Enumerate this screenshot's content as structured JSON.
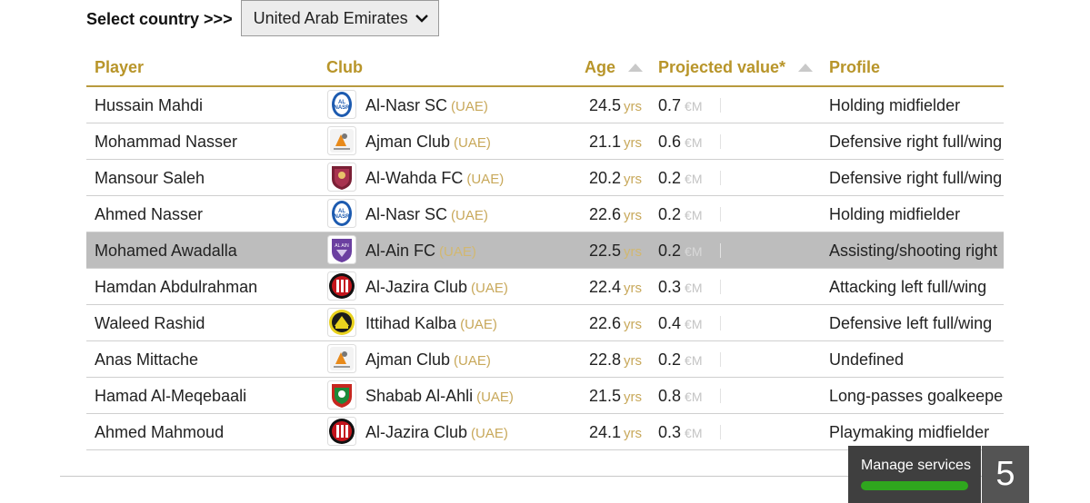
{
  "selector": {
    "label": "Select country >>>",
    "value": "United Arab Emirates"
  },
  "columns": {
    "player": "Player",
    "club": "Club",
    "age": "Age",
    "value": "Projected value*",
    "profile": "Profile"
  },
  "rows": [
    {
      "player": "Hussain Mahdi",
      "club": "Al-Nasr SC",
      "country": "(UAE)",
      "age": "24.5",
      "age_unit": "yrs",
      "value": "0.7",
      "currency": "€M",
      "profile": "Holding midfielder",
      "logo": "al-nasr-logo"
    },
    {
      "player": "Mohammad Nasser",
      "club": "Ajman Club",
      "country": "(UAE)",
      "age": "21.1",
      "age_unit": "yrs",
      "value": "0.6",
      "currency": "€M",
      "profile": "Defensive right full/wing",
      "logo": "ajman-logo"
    },
    {
      "player": "Mansour Saleh",
      "club": "Al-Wahda FC",
      "country": "(UAE)",
      "age": "20.2",
      "age_unit": "yrs",
      "value": "0.2",
      "currency": "€M",
      "profile": "Defensive right full/wing",
      "logo": "al-wahda-logo"
    },
    {
      "player": "Ahmed Nasser",
      "club": "Al-Nasr SC",
      "country": "(UAE)",
      "age": "22.6",
      "age_unit": "yrs",
      "value": "0.2",
      "currency": "€M",
      "profile": "Holding midfielder",
      "logo": "al-nasr-logo"
    },
    {
      "player": "Mohamed Awadalla",
      "club": "Al-Ain FC",
      "country": "(UAE)",
      "age": "22.5",
      "age_unit": "yrs",
      "value": "0.2",
      "currency": "€M",
      "profile": "Assisting/shooting right",
      "logo": "al-ain-logo",
      "highlighted": true
    },
    {
      "player": "Hamdan Abdulrahman",
      "club": "Al-Jazira Club",
      "country": "(UAE)",
      "age": "22.4",
      "age_unit": "yrs",
      "value": "0.3",
      "currency": "€M",
      "profile": "Attacking left full/wing",
      "logo": "al-jazira-logo"
    },
    {
      "player": "Waleed Rashid",
      "club": "Ittihad Kalba",
      "country": "(UAE)",
      "age": "22.6",
      "age_unit": "yrs",
      "value": "0.4",
      "currency": "€M",
      "profile": "Defensive left full/wing",
      "logo": "ittihad-kalba-logo"
    },
    {
      "player": "Anas Mittache",
      "club": "Ajman Club",
      "country": "(UAE)",
      "age": "22.8",
      "age_unit": "yrs",
      "value": "0.2",
      "currency": "€M",
      "profile": "Undefined",
      "logo": "ajman-logo"
    },
    {
      "player": "Hamad Al-Meqebaali",
      "club": "Shabab Al-Ahli",
      "country": "(UAE)",
      "age": "21.5",
      "age_unit": "yrs",
      "value": "0.8",
      "currency": "€M",
      "profile": "Long-passes goalkeeper",
      "logo": "shabab-al-ahli-logo"
    },
    {
      "player": "Ahmed Mahmoud",
      "club": "Al-Jazira Club",
      "country": "(UAE)",
      "age": "24.1",
      "age_unit": "yrs",
      "value": "0.3",
      "currency": "€M",
      "profile": "Playmaking midfielder",
      "logo": "al-jazira-logo"
    }
  ],
  "manage": {
    "label": "Manage services",
    "count": "5",
    "bar_fill_percent": 100
  },
  "colors": {
    "header_gold": "#b8952a",
    "unit_gold": "#c8a85a",
    "highlight_row": "#bdbdbd",
    "manage_bg": "#3f3f3f",
    "bar_green": "#2fa61e"
  }
}
